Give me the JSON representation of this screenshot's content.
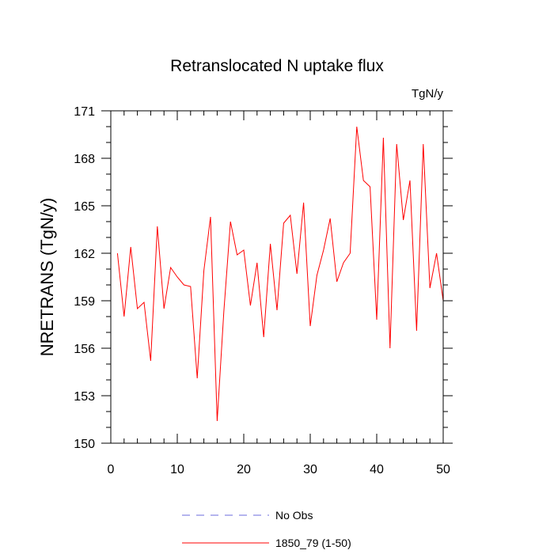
{
  "chart_data": {
    "type": "line",
    "title": "Retranslocated N uptake flux",
    "units": "TgN/y",
    "ylabel": "NRETRANS  (TgN/y)",
    "xlabel": "",
    "xlim": [
      0,
      50
    ],
    "ylim": [
      150,
      171
    ],
    "xticks": [
      0,
      10,
      20,
      30,
      40,
      50
    ],
    "yticks": [
      150,
      153,
      156,
      159,
      162,
      165,
      168,
      171
    ],
    "grid": false,
    "legend_position": "bottom",
    "series": [
      {
        "name": "No Obs",
        "color": "#6b6bdc",
        "style": "dashed",
        "x": [],
        "values": []
      },
      {
        "name": "1850_79 (1-50)",
        "color": "#ff0000",
        "style": "solid",
        "x": [
          1,
          2,
          3,
          4,
          5,
          6,
          7,
          8,
          9,
          10,
          11,
          12,
          13,
          14,
          15,
          16,
          17,
          18,
          19,
          20,
          21,
          22,
          23,
          24,
          25,
          26,
          27,
          28,
          29,
          30,
          31,
          32,
          33,
          34,
          35,
          36,
          37,
          38,
          39,
          40,
          41,
          42,
          43,
          44,
          45,
          46,
          47,
          48,
          49,
          50
        ],
        "values": [
          162.0,
          158.0,
          162.4,
          158.5,
          158.9,
          155.2,
          163.7,
          158.5,
          161.1,
          160.5,
          160.0,
          159.9,
          154.1,
          160.9,
          164.3,
          151.4,
          158.3,
          164.0,
          161.9,
          162.2,
          158.7,
          161.4,
          156.7,
          162.6,
          158.4,
          163.9,
          164.4,
          160.7,
          165.2,
          157.4,
          160.6,
          162.2,
          164.2,
          160.2,
          161.4,
          162.0,
          170.0,
          166.6,
          166.2,
          157.8,
          169.3,
          156.0,
          168.9,
          164.1,
          166.6,
          157.1,
          168.9,
          159.8,
          162.0,
          159.0
        ]
      }
    ]
  }
}
